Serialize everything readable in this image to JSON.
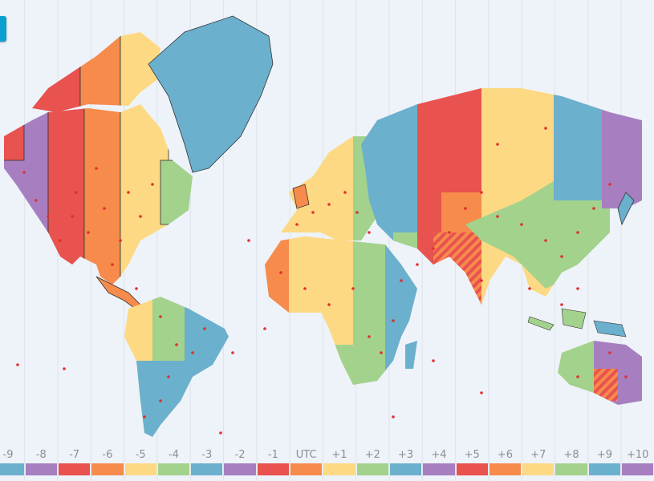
{
  "menu_button": {
    "color": "#0aa0cf",
    "icon": "menu-icon"
  },
  "map": {
    "background": "#eef3f9",
    "city_marker_color": "#e0302e"
  },
  "legend": {
    "items": [
      {
        "label": "-9",
        "color": "#6bb0cc"
      },
      {
        "label": "-8",
        "color": "#a77fc0"
      },
      {
        "label": "-7",
        "color": "#e8524f"
      },
      {
        "label": "-6",
        "color": "#f68b4c"
      },
      {
        "label": "-5",
        "color": "#fdd983"
      },
      {
        "label": "-4",
        "color": "#a3d28c"
      },
      {
        "label": "-3",
        "color": "#6bb0cc"
      },
      {
        "label": "-2",
        "color": "#a77fc0"
      },
      {
        "label": "-1",
        "color": "#e8524f"
      },
      {
        "label": "UTC",
        "color": "#f68b4c"
      },
      {
        "label": "+1",
        "color": "#fdd983"
      },
      {
        "label": "+2",
        "color": "#a3d28c"
      },
      {
        "label": "+3",
        "color": "#6bb0cc"
      },
      {
        "label": "+4",
        "color": "#a77fc0"
      },
      {
        "label": "+5",
        "color": "#e8524f"
      },
      {
        "label": "+6",
        "color": "#f68b4c"
      },
      {
        "label": "+7",
        "color": "#fdd983"
      },
      {
        "label": "+8",
        "color": "#a3d28c"
      },
      {
        "label": "+9",
        "color": "#6bb0cc"
      },
      {
        "label": "+10",
        "color": "#a77fc0"
      }
    ]
  }
}
